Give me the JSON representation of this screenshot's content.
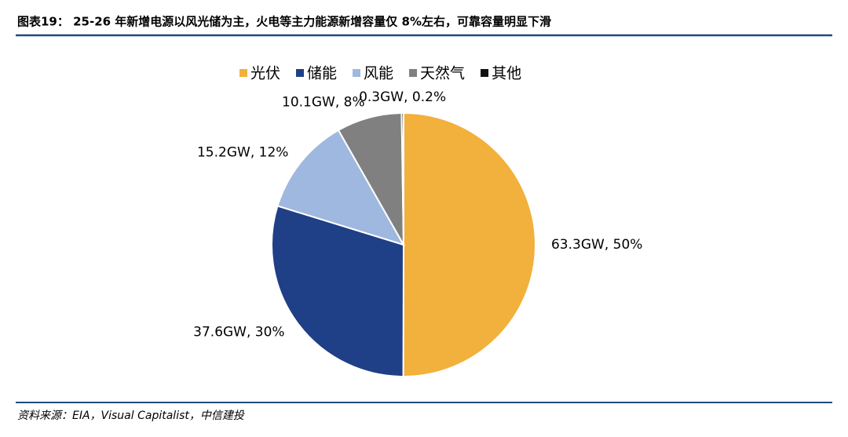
{
  "chart_data": {
    "type": "pie",
    "title": "图表19： 25-26 年新增电源以风光储为主，火电等主力能源新增容量仅 8%左右，可靠容量明显下滑",
    "categories": [
      "光伏",
      "储能",
      "风能",
      "天然气",
      "其他"
    ],
    "values": [
      63.3,
      37.6,
      15.2,
      10.1,
      0.3
    ],
    "value_labels": [
      "63.3GW, 50%",
      "37.6GW, 30%",
      "15.2GW, 12%",
      "10.1GW, 8%",
      "0.3GW, 0.2%"
    ],
    "colors": [
      "#f2b03c",
      "#1f3f86",
      "#9fb8e0",
      "#808080",
      "#111111"
    ],
    "legend": "top",
    "source": "资料来源：EIA，Visual Capitalist，中信建投"
  }
}
